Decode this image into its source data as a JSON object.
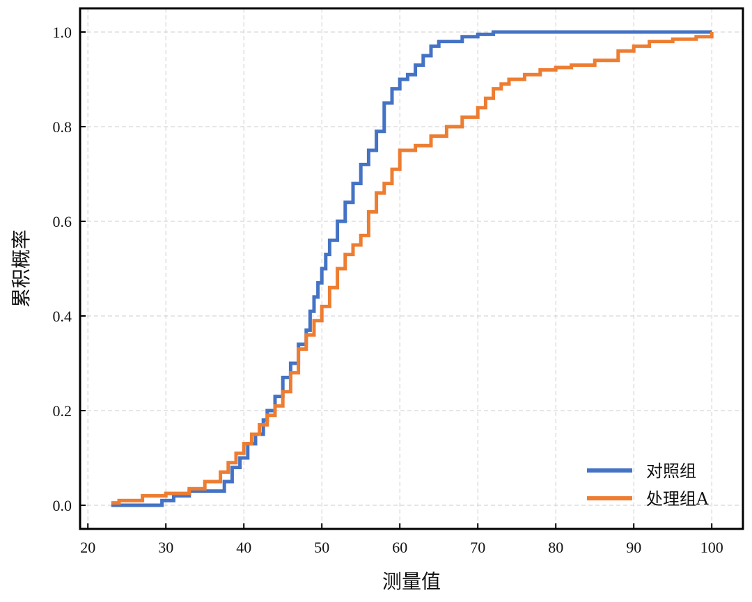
{
  "chart_data": {
    "type": "line",
    "step": true,
    "xlabel": "测量值",
    "ylabel": "累积概率",
    "xlim": [
      19,
      104
    ],
    "ylim": [
      -0.05,
      1.05
    ],
    "xticks": [
      20,
      30,
      40,
      50,
      60,
      70,
      80,
      90,
      100
    ],
    "yticks": [
      0.0,
      0.2,
      0.4,
      0.6,
      0.8,
      1.0
    ],
    "grid": true,
    "legend_position": "lower-right",
    "series": [
      {
        "name": "对照组",
        "color": "#4472C4",
        "x": [
          23,
          29.5,
          31,
          33,
          37,
          37.5,
          38.5,
          39.5,
          40.5,
          41.5,
          42.5,
          43,
          44,
          45,
          46,
          47,
          48,
          48.5,
          49,
          49.5,
          50,
          50.5,
          51,
          52,
          53,
          54,
          55,
          56,
          57,
          58,
          59,
          60,
          61,
          62,
          63,
          64,
          65,
          66,
          68,
          70,
          72,
          80,
          90,
          100
        ],
        "y": [
          0.0,
          0.01,
          0.02,
          0.03,
          0.03,
          0.05,
          0.08,
          0.1,
          0.13,
          0.15,
          0.18,
          0.2,
          0.23,
          0.27,
          0.3,
          0.34,
          0.37,
          0.41,
          0.44,
          0.47,
          0.5,
          0.53,
          0.56,
          0.6,
          0.64,
          0.68,
          0.72,
          0.75,
          0.79,
          0.85,
          0.88,
          0.9,
          0.91,
          0.93,
          0.95,
          0.97,
          0.98,
          0.98,
          0.99,
          0.995,
          1.0,
          1.0,
          1.0,
          1.0
        ]
      },
      {
        "name": "处理组A",
        "color": "#ED7D31",
        "x": [
          23,
          24,
          27,
          30,
          33,
          35,
          37,
          38,
          39,
          40,
          41,
          42,
          43,
          44,
          45,
          46,
          47,
          48,
          49,
          50,
          51,
          52,
          53,
          54,
          55,
          56,
          57,
          58,
          59,
          60,
          62,
          64,
          66,
          68,
          70,
          71,
          72,
          73,
          74,
          76,
          78,
          80,
          82,
          85,
          88,
          90,
          92,
          95,
          98,
          100
        ],
        "y": [
          0.005,
          0.01,
          0.02,
          0.025,
          0.035,
          0.05,
          0.07,
          0.09,
          0.11,
          0.13,
          0.15,
          0.17,
          0.19,
          0.21,
          0.24,
          0.28,
          0.33,
          0.36,
          0.39,
          0.42,
          0.46,
          0.5,
          0.53,
          0.55,
          0.57,
          0.62,
          0.66,
          0.68,
          0.71,
          0.75,
          0.76,
          0.78,
          0.8,
          0.82,
          0.84,
          0.86,
          0.88,
          0.89,
          0.9,
          0.91,
          0.92,
          0.925,
          0.93,
          0.94,
          0.96,
          0.97,
          0.98,
          0.985,
          0.99,
          1.0
        ]
      }
    ]
  }
}
